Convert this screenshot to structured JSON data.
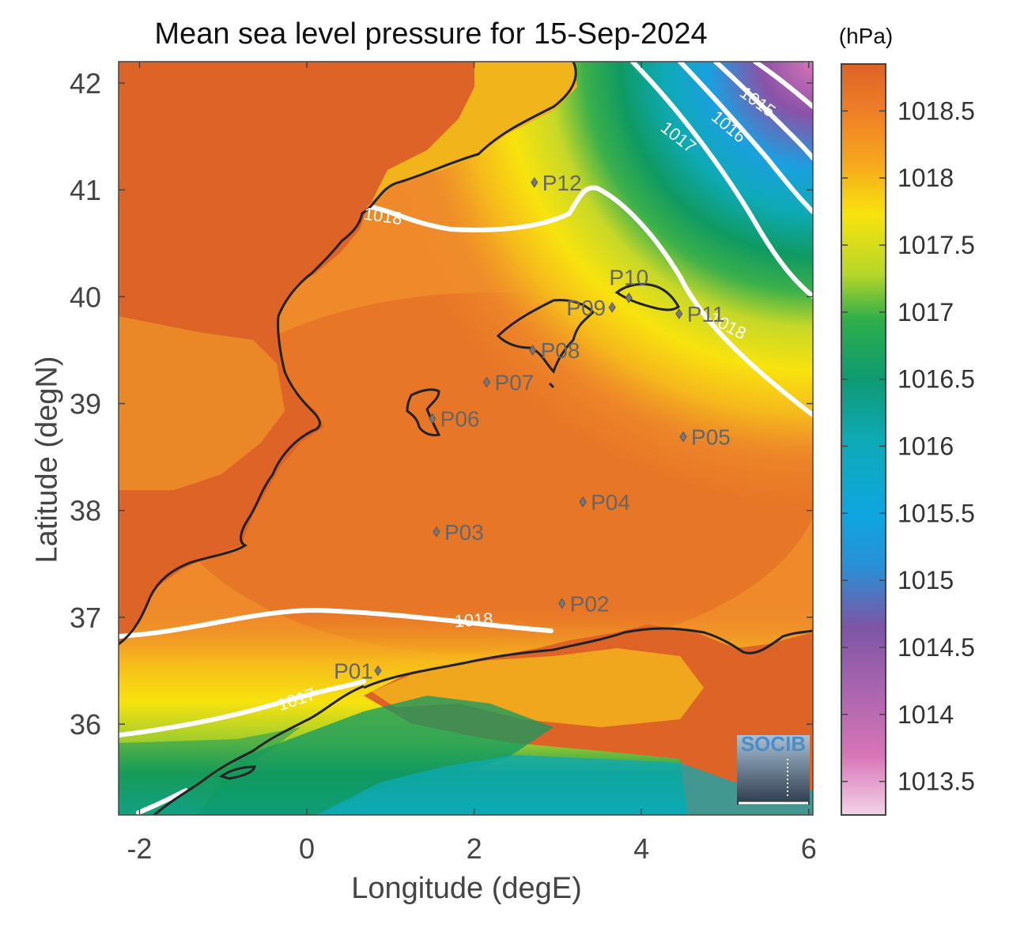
{
  "title": "Mean sea level pressure for 15-Sep-2024",
  "colorbar_unit": "(hPa)",
  "xlabel": "Longitude (degE)",
  "ylabel": "Latitude (degN)",
  "logo_text": "SOCIB",
  "colors": {
    "high": "#dd6326",
    "mid_orange": "#ef8a2a",
    "yellow": "#f5dc12",
    "green": "#169b5a",
    "teal": "#0eaab6",
    "blue": "#0ea6e0",
    "purple": "#8a52a8",
    "pink": "#f0c8de",
    "contour": "#ffffff",
    "coast": "#222222"
  },
  "chart_data": {
    "type": "heatmap",
    "title": "Mean sea level pressure for 15-Sep-2024",
    "xlabel": "Longitude (degE)",
    "ylabel": "Latitude (degN)",
    "xlim": [
      -2.25,
      6.05
    ],
    "ylim": [
      35.15,
      42.2
    ],
    "xticks": [
      -2,
      0,
      2,
      4,
      6
    ],
    "yticks": [
      36,
      37,
      38,
      39,
      40,
      41,
      42
    ],
    "colorbar": {
      "unit": "(hPa)",
      "range": [
        1013.25,
        1018.85
      ],
      "ticks": [
        "1013.5",
        "1014",
        "1014.5",
        "1015",
        "1015.5",
        "1016",
        "1016.5",
        "1017",
        "1017.5",
        "1018",
        "1018.5"
      ]
    },
    "contours": [
      {
        "level": "1018",
        "label": "1018",
        "label_pos": [
          0.9,
          40.7
        ]
      },
      {
        "level": "1018",
        "label": "1018",
        "label_pos": [
          2.0,
          36.92
        ]
      },
      {
        "level": "1018",
        "label": "1018",
        "label_pos": [
          5.0,
          39.68
        ]
      },
      {
        "level": "1017",
        "label": "1017",
        "label_pos": [
          4.4,
          41.45
        ]
      },
      {
        "level": "1017",
        "label": "1017",
        "label_pos": [
          -0.1,
          36.18
        ]
      },
      {
        "level": "1016",
        "label": "1016",
        "label_pos": [
          5.0,
          41.55
        ]
      },
      {
        "level": "1015",
        "label": "1015",
        "label_pos": [
          5.35,
          41.78
        ]
      }
    ],
    "points": [
      {
        "id": "P01",
        "lon": 0.85,
        "lat": 36.5
      },
      {
        "id": "P02",
        "lon": 3.05,
        "lat": 37.13
      },
      {
        "id": "P03",
        "lon": 1.55,
        "lat": 37.8
      },
      {
        "id": "P04",
        "lon": 3.3,
        "lat": 38.08
      },
      {
        "id": "P05",
        "lon": 4.5,
        "lat": 38.69
      },
      {
        "id": "P06",
        "lon": 1.5,
        "lat": 38.86
      },
      {
        "id": "P07",
        "lon": 2.15,
        "lat": 39.2
      },
      {
        "id": "P08",
        "lon": 2.7,
        "lat": 39.5
      },
      {
        "id": "P09",
        "lon": 3.65,
        "lat": 39.9
      },
      {
        "id": "P10",
        "lon": 3.85,
        "lat": 39.99
      },
      {
        "id": "P11",
        "lon": 4.45,
        "lat": 39.84
      },
      {
        "id": "P12",
        "lon": 2.72,
        "lat": 41.07
      }
    ]
  }
}
